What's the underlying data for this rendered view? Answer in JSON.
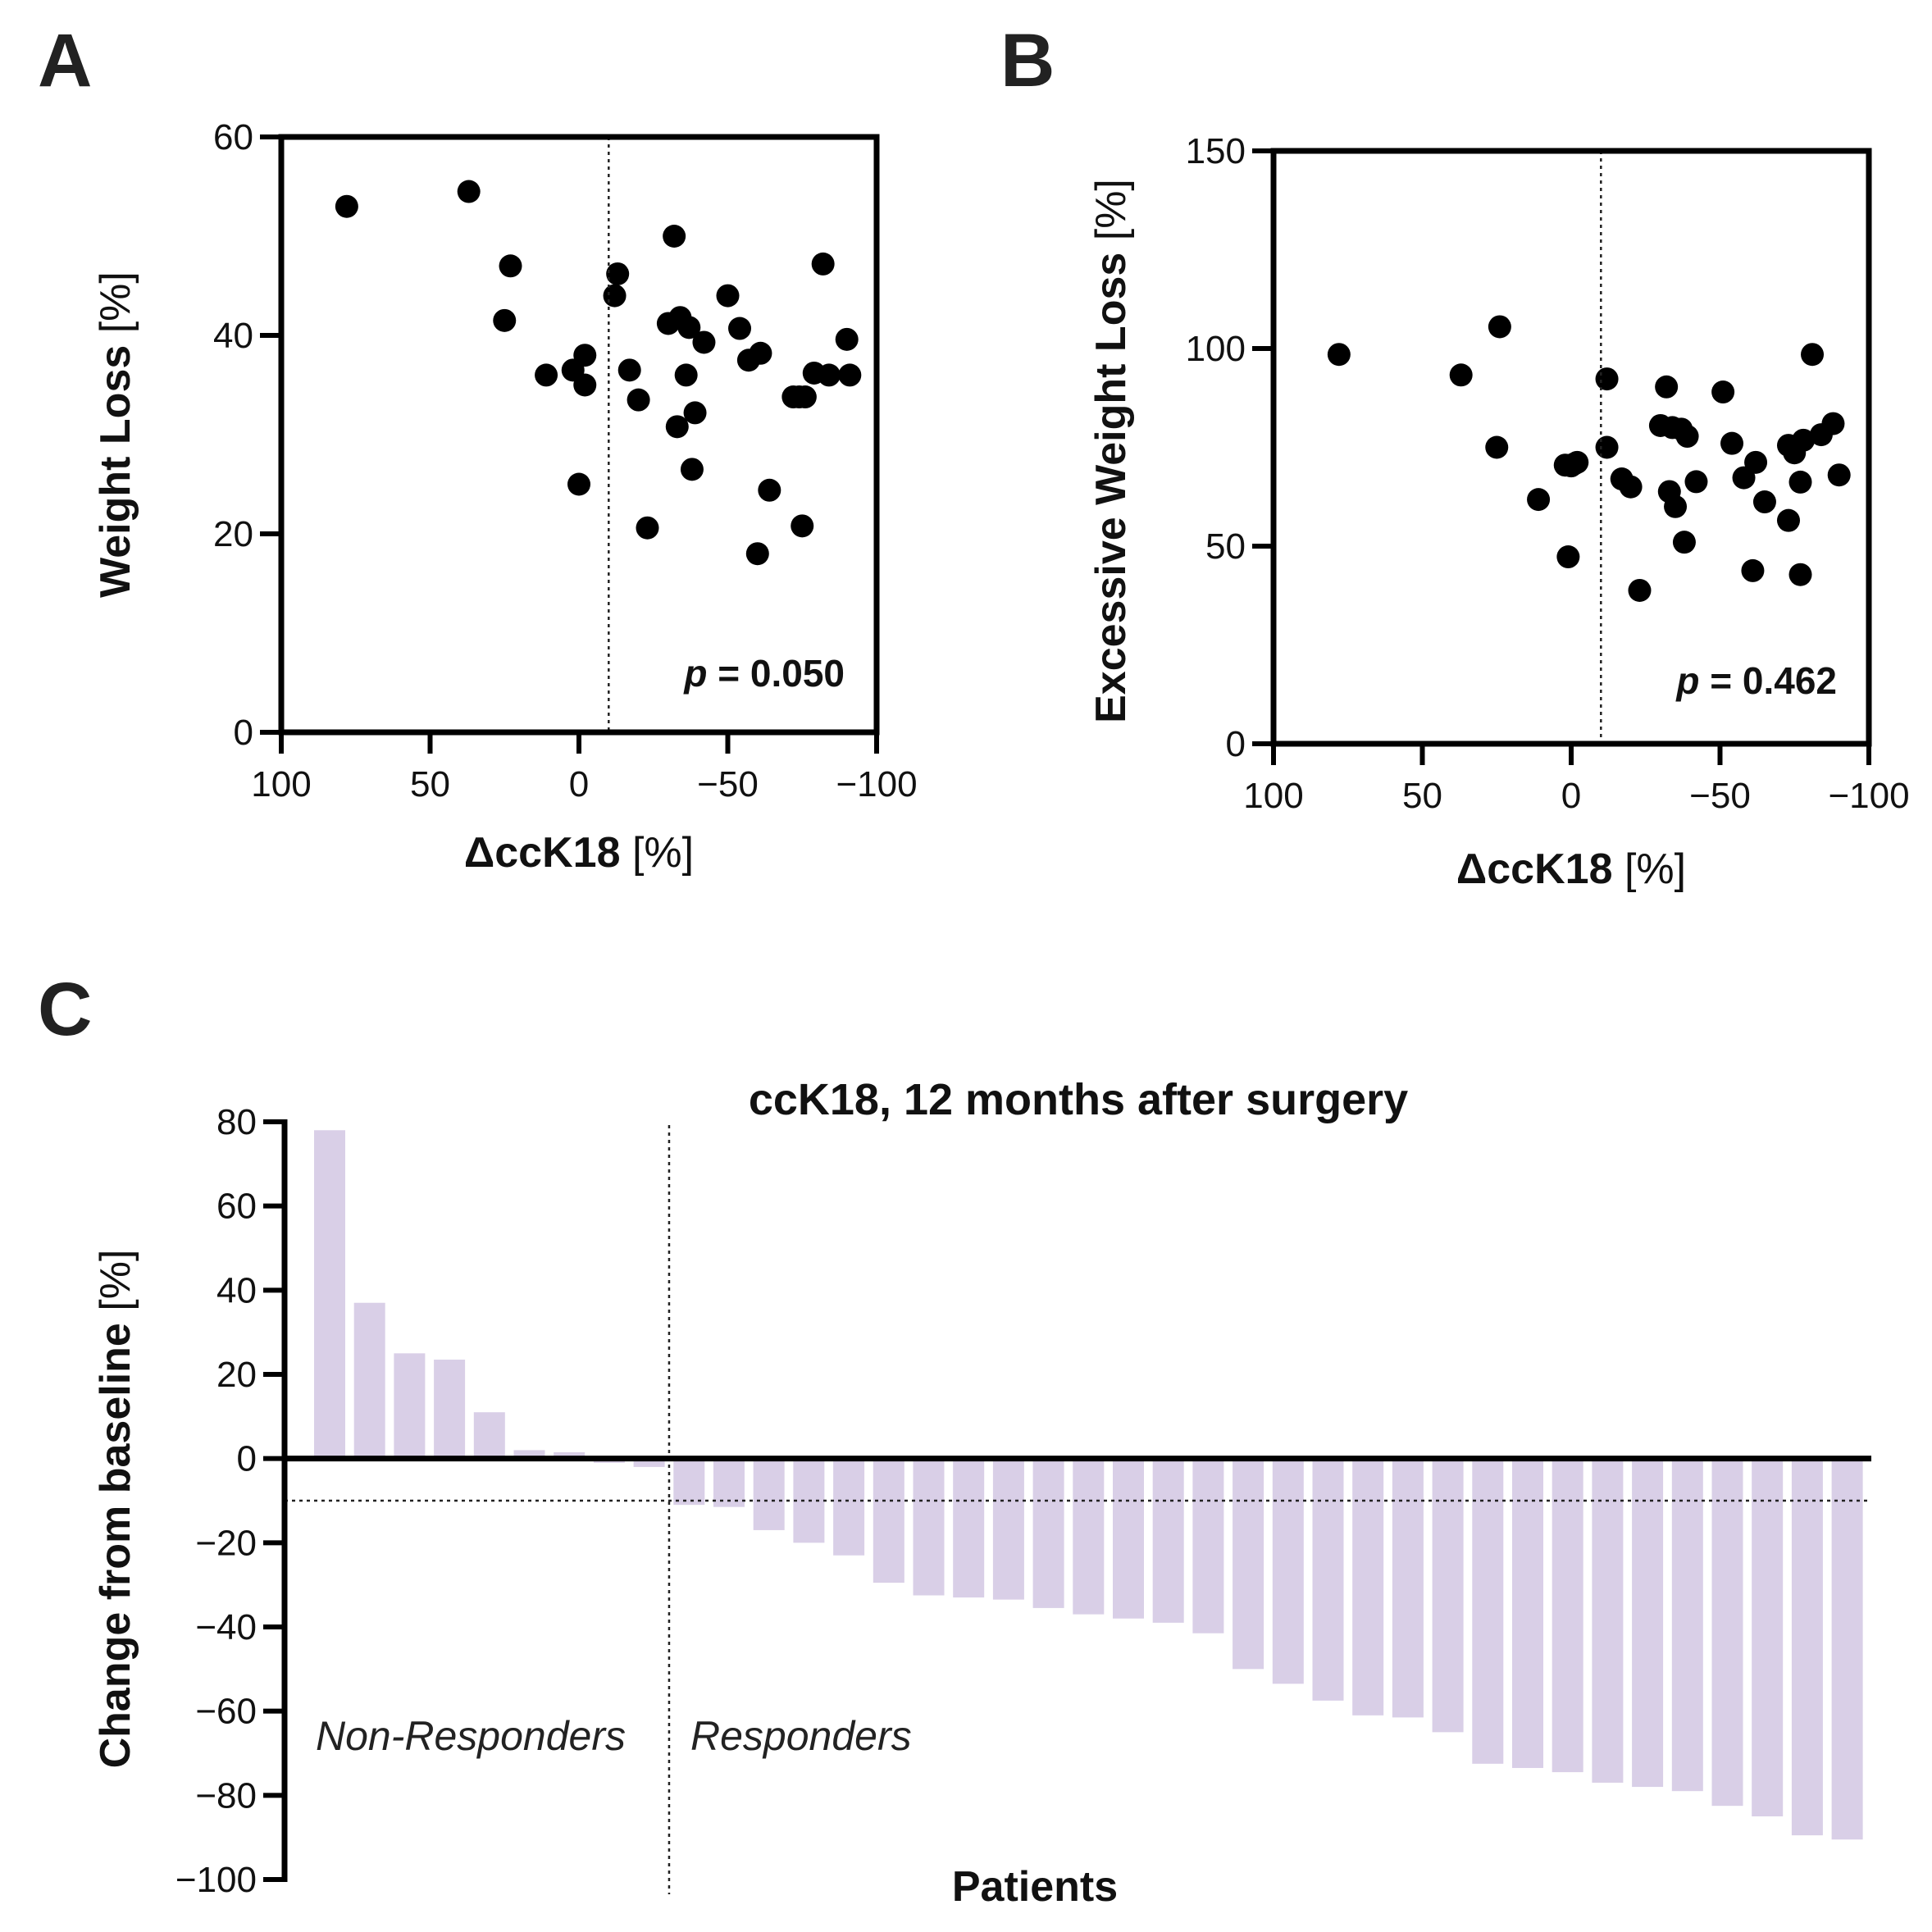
{
  "chart_data": [
    {
      "panel": "A",
      "type": "scatter",
      "xlabel": "ΔccK18",
      "xunit": "[%]",
      "ylabel": "Weight Loss",
      "yunit": "[%]",
      "xlim": [
        100,
        -100
      ],
      "ylim": [
        0,
        60
      ],
      "xticks": [
        "100",
        "50",
        "0",
        "−50",
        "−100"
      ],
      "yticks": [
        "0",
        "20",
        "40",
        "60"
      ],
      "refline_x": -10,
      "pvalue": {
        "label": "p",
        "value": "= 0.050"
      },
      "points": [
        [
          78,
          53
        ],
        [
          37,
          54.5
        ],
        [
          25,
          41.5
        ],
        [
          23,
          47
        ],
        [
          11,
          36
        ],
        [
          2,
          36.5
        ],
        [
          0,
          25
        ],
        [
          -2,
          35
        ],
        [
          -2,
          38
        ],
        [
          -12,
          44
        ],
        [
          -13,
          46.2
        ],
        [
          -17,
          36.5
        ],
        [
          -20,
          33.5
        ],
        [
          -23,
          20.6
        ],
        [
          -30,
          41.2
        ],
        [
          -32,
          50
        ],
        [
          -33,
          30.8
        ],
        [
          -34,
          41.8
        ],
        [
          -36,
          36
        ],
        [
          -37,
          40.8
        ],
        [
          -38,
          26.5
        ],
        [
          -39,
          32.2
        ],
        [
          -42,
          39.3
        ],
        [
          -50,
          44
        ],
        [
          -54,
          40.7
        ],
        [
          -57,
          37.5
        ],
        [
          -60,
          18
        ],
        [
          -61,
          38.2
        ],
        [
          -64,
          24.4
        ],
        [
          -72,
          33.8
        ],
        [
          -74,
          33.8
        ],
        [
          -75,
          20.8
        ],
        [
          -76,
          33.8
        ],
        [
          -79,
          36.2
        ],
        [
          -82,
          47.2
        ],
        [
          -84,
          36
        ],
        [
          -90,
          39.6
        ],
        [
          -91,
          36
        ]
      ]
    },
    {
      "panel": "B",
      "type": "scatter",
      "xlabel": "ΔccK18",
      "xunit": "[%]",
      "ylabel": "Excessive Weight Loss",
      "yunit": "[%]",
      "xlim": [
        100,
        -100
      ],
      "ylim": [
        0,
        150
      ],
      "xticks": [
        "100",
        "50",
        "0",
        "−50",
        "−100"
      ],
      "yticks": [
        "0",
        "50",
        "100",
        "150"
      ],
      "refline_x": -10,
      "pvalue": {
        "label": "p",
        "value": "= 0.462"
      },
      "points": [
        [
          78,
          98.5
        ],
        [
          37,
          93.3
        ],
        [
          25,
          75
        ],
        [
          24,
          105.5
        ],
        [
          11,
          61.8
        ],
        [
          2,
          70.5
        ],
        [
          1,
          47.3
        ],
        [
          0,
          70.3
        ],
        [
          -1,
          70.8
        ],
        [
          -2,
          71.2
        ],
        [
          -12,
          75
        ],
        [
          -12,
          92.3
        ],
        [
          -17,
          67
        ],
        [
          -20,
          65
        ],
        [
          -23,
          38.8
        ],
        [
          -30,
          80.5
        ],
        [
          -32,
          90.3
        ],
        [
          -33,
          63.8
        ],
        [
          -34,
          80
        ],
        [
          -35,
          60
        ],
        [
          -37,
          79.6
        ],
        [
          -38,
          51
        ],
        [
          -39,
          77.8
        ],
        [
          -42,
          66.3
        ],
        [
          -51,
          89
        ],
        [
          -54,
          76
        ],
        [
          -58,
          67.3
        ],
        [
          -61,
          43.8
        ],
        [
          -62,
          71.2
        ],
        [
          -65,
          61.2
        ],
        [
          -73,
          75.5
        ],
        [
          -73,
          56.5
        ],
        [
          -75,
          73.6
        ],
        [
          -77,
          66.2
        ],
        [
          -77,
          42.8
        ],
        [
          -78,
          76.8
        ],
        [
          -81,
          98.5
        ],
        [
          -84,
          78.2
        ],
        [
          -88,
          81
        ],
        [
          -90,
          68
        ]
      ]
    },
    {
      "panel": "C",
      "type": "bar",
      "title": "ccK18, 12 months after surgery",
      "xlabel": "Patients",
      "ylabel": "Change from baseline",
      "yunit": "[%]",
      "ylim": [
        -100,
        80
      ],
      "yticks": [
        "80",
        "60",
        "40",
        "20",
        "0",
        "−20",
        "−40",
        "−60",
        "−80",
        "−100"
      ],
      "threshold_y": -10,
      "split_after_index": 8,
      "group_labels": [
        "Non-Responders",
        "Responders"
      ],
      "bar_color": "#d9cfe7",
      "values": [
        78,
        37,
        25,
        23.5,
        11,
        2,
        1.5,
        -1,
        -2,
        -11,
        -11.5,
        -17,
        -20,
        -23,
        -29.5,
        -32.5,
        -33,
        -33.5,
        -35.5,
        -37,
        -38,
        -39,
        -41.5,
        -50,
        -53.5,
        -57.5,
        -61,
        -61.5,
        -65,
        -72.5,
        -73.5,
        -74.5,
        -77,
        -78,
        -79,
        -82.5,
        -85,
        -89.5,
        -90.5
      ]
    }
  ]
}
